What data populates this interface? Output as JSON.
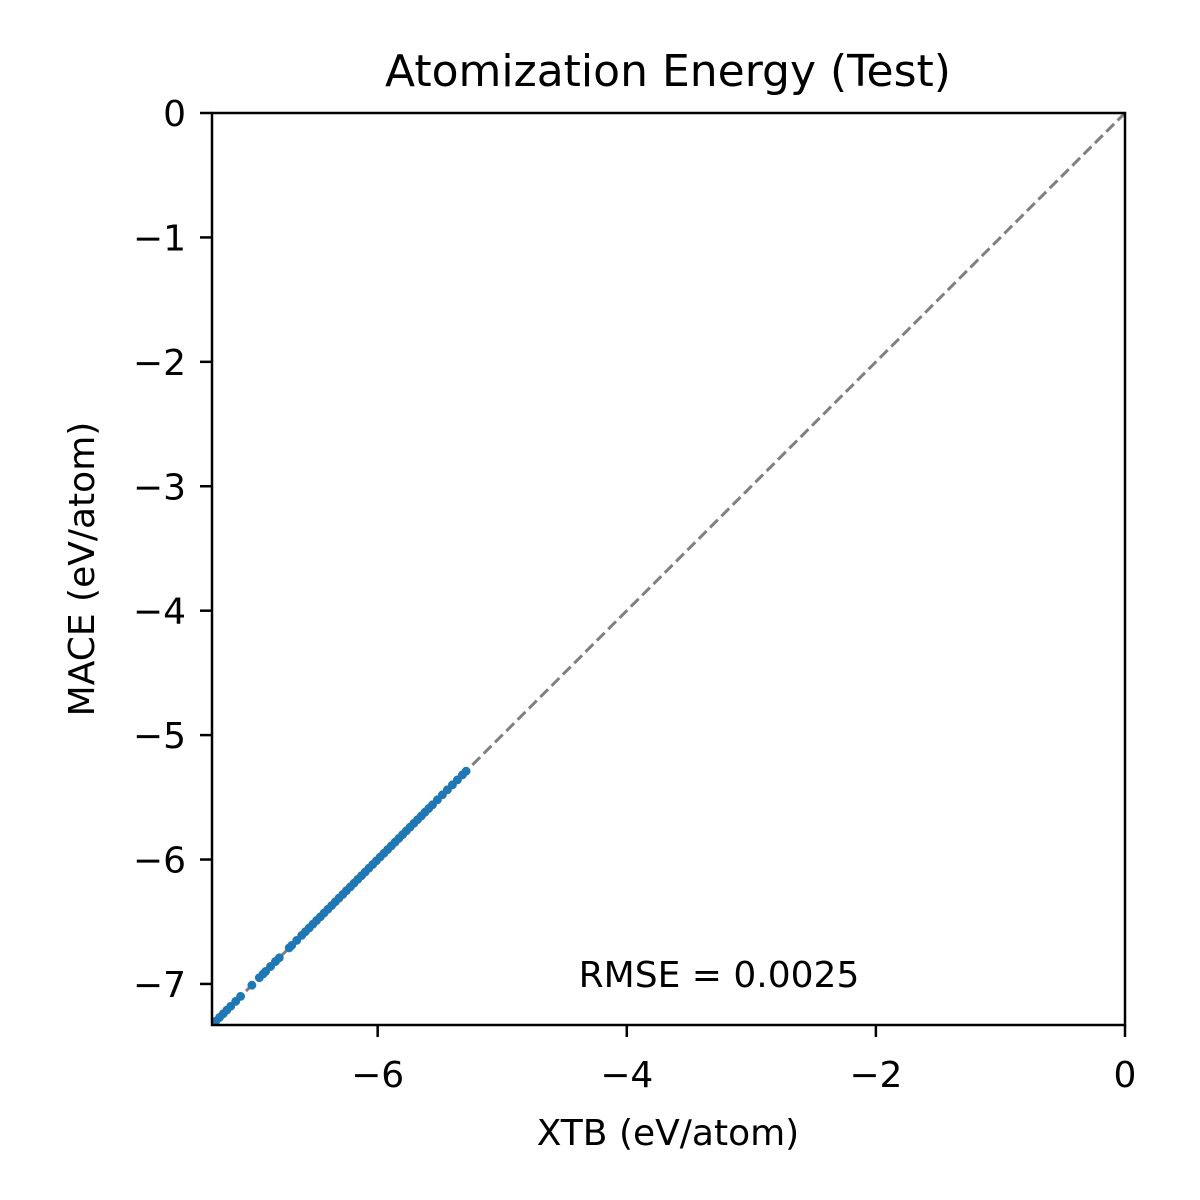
{
  "chart_data": {
    "type": "scatter",
    "title": "Atomization Energy (Test)",
    "xlabel": "XTB (eV/atom)",
    "ylabel": "MACE (eV/atom)",
    "xlim": [
      -7.33,
      0
    ],
    "ylim": [
      -7.33,
      0
    ],
    "x_ticks": [
      -6,
      -4,
      -2,
      0
    ],
    "x_tick_labels": [
      "−6",
      "−4",
      "−2",
      "0"
    ],
    "y_ticks": [
      0,
      -1,
      -2,
      -3,
      -4,
      -5,
      -6,
      -7
    ],
    "y_tick_labels": [
      "0",
      "−1",
      "−2",
      "−3",
      "−4",
      "−5",
      "−6",
      "−7"
    ],
    "grid": false,
    "reference_line": {
      "style": "dashed",
      "from": [
        -7.33,
        -7.33
      ],
      "to": [
        0,
        0
      ],
      "color": "#808080"
    },
    "annotation": "RMSE = 0.0025",
    "marker_color": "#1f77b4",
    "series": [
      {
        "x": [
          -7.3,
          -7.27,
          -7.24,
          -7.21,
          -7.18,
          -7.14,
          -7.1,
          -7.01,
          -6.95,
          -6.92,
          -6.9,
          -6.86,
          -6.82,
          -6.79,
          -6.71,
          -6.69,
          -6.65,
          -6.61,
          -6.58,
          -6.55,
          -6.52,
          -6.49,
          -6.46,
          -6.43,
          -6.4,
          -6.37,
          -6.34,
          -6.31,
          -6.28,
          -6.25,
          -6.22,
          -6.19,
          -6.16,
          -6.13,
          -6.1,
          -6.07,
          -6.04,
          -6.01,
          -5.98,
          -5.95,
          -5.92,
          -5.89,
          -5.86,
          -5.83,
          -5.8,
          -5.77,
          -5.74,
          -5.71,
          -5.68,
          -5.65,
          -5.62,
          -5.59,
          -5.56,
          -5.52,
          -5.48,
          -5.44,
          -5.4,
          -5.36,
          -5.32,
          -5.29
        ],
        "y": [
          -7.3,
          -7.27,
          -7.24,
          -7.21,
          -7.18,
          -7.14,
          -7.1,
          -7.01,
          -6.95,
          -6.92,
          -6.9,
          -6.86,
          -6.82,
          -6.79,
          -6.71,
          -6.69,
          -6.65,
          -6.61,
          -6.58,
          -6.55,
          -6.52,
          -6.49,
          -6.46,
          -6.43,
          -6.4,
          -6.37,
          -6.34,
          -6.31,
          -6.28,
          -6.25,
          -6.22,
          -6.19,
          -6.16,
          -6.13,
          -6.1,
          -6.07,
          -6.04,
          -6.01,
          -5.98,
          -5.95,
          -5.92,
          -5.89,
          -5.86,
          -5.83,
          -5.8,
          -5.77,
          -5.74,
          -5.71,
          -5.68,
          -5.65,
          -5.62,
          -5.59,
          -5.56,
          -5.52,
          -5.48,
          -5.44,
          -5.4,
          -5.36,
          -5.32,
          -5.29
        ]
      }
    ]
  }
}
